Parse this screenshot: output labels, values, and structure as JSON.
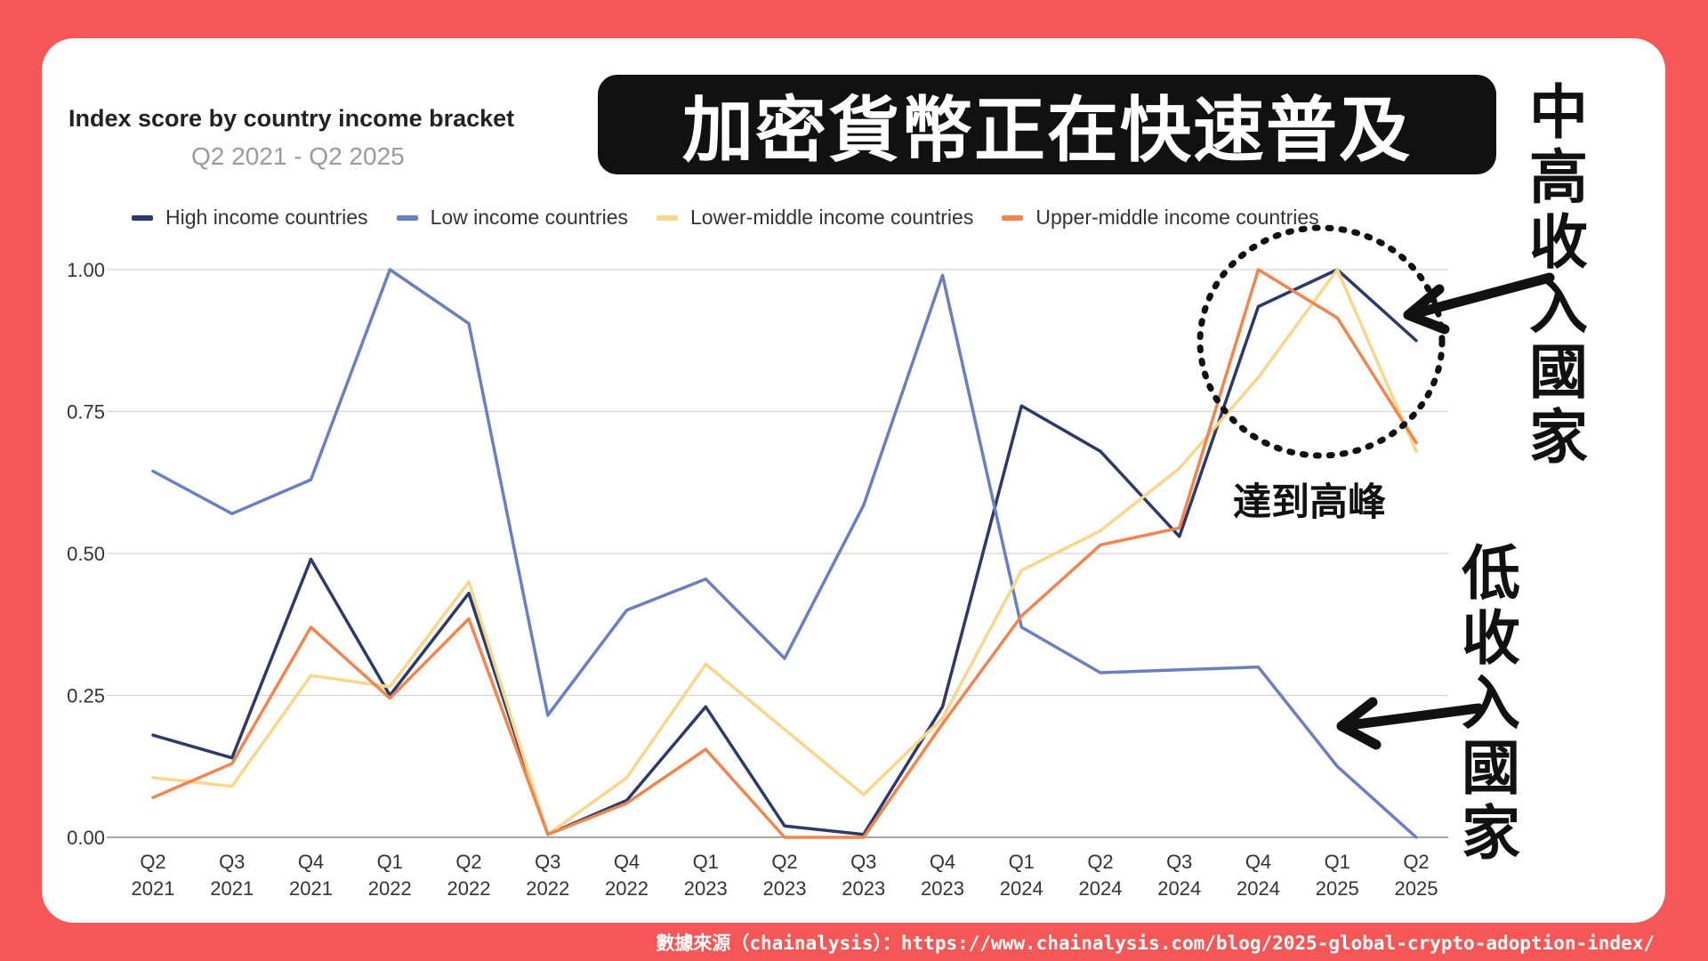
{
  "headline": "加密貨幣正在快速普及",
  "annotations": {
    "mid_high": "中高收入國家",
    "low": "低收入國家",
    "peak": "達到高峰"
  },
  "source": "數據來源（chainalysis）：https://www.chainalysis.com/blog/2025-global-crypto-adoption-index/",
  "colors": {
    "background": "#f55656",
    "high": "#2b3a6b",
    "low": "#6a7fc1",
    "lower_middle": "#f9d68a",
    "upper_middle": "#f2844d"
  },
  "chart_data": {
    "type": "line",
    "title": "Index score by country income bracket",
    "subtitle": "Q2 2021 - Q2 2025",
    "categories": [
      [
        "Q2",
        "2021"
      ],
      [
        "Q3",
        "2021"
      ],
      [
        "Q4",
        "2021"
      ],
      [
        "Q1",
        "2022"
      ],
      [
        "Q2",
        "2022"
      ],
      [
        "Q3",
        "2022"
      ],
      [
        "Q4",
        "2022"
      ],
      [
        "Q1",
        "2023"
      ],
      [
        "Q2",
        "2023"
      ],
      [
        "Q3",
        "2023"
      ],
      [
        "Q4",
        "2023"
      ],
      [
        "Q1",
        "2024"
      ],
      [
        "Q2",
        "2024"
      ],
      [
        "Q3",
        "2024"
      ],
      [
        "Q4",
        "2024"
      ],
      [
        "Q1",
        "2025"
      ],
      [
        "Q2",
        "2025"
      ]
    ],
    "y_ticks": [
      "0.00",
      "0.25",
      "0.50",
      "0.75",
      "1.00"
    ],
    "ylim": [
      0,
      1
    ],
    "grid": true,
    "legend_position": "top",
    "series": [
      {
        "name": "High income countries",
        "color": "#2b3a6b",
        "values": [
          0.18,
          0.14,
          0.49,
          0.25,
          0.43,
          0.005,
          0.065,
          0.23,
          0.02,
          0.005,
          0.23,
          0.76,
          0.68,
          0.53,
          0.935,
          1.0,
          0.875
        ]
      },
      {
        "name": "Low income countries",
        "color": "#6a7fc1",
        "values": [
          0.645,
          0.57,
          0.63,
          1.0,
          0.905,
          0.215,
          0.4,
          0.455,
          0.315,
          0.585,
          0.99,
          0.37,
          0.29,
          0.295,
          0.3,
          0.125,
          0.0
        ]
      },
      {
        "name": "Lower-middle income countries",
        "color": "#f9d68a",
        "values": [
          0.105,
          0.09,
          0.285,
          0.265,
          0.45,
          0.005,
          0.105,
          0.305,
          0.19,
          0.075,
          0.21,
          0.47,
          0.54,
          0.65,
          0.81,
          1.0,
          0.68
        ]
      },
      {
        "name": "Upper-middle income countries",
        "color": "#f2844d",
        "values": [
          0.07,
          0.13,
          0.37,
          0.245,
          0.385,
          0.005,
          0.06,
          0.155,
          0.0,
          0.0,
          0.2,
          0.39,
          0.515,
          0.545,
          1.0,
          0.915,
          0.695
        ]
      }
    ]
  }
}
